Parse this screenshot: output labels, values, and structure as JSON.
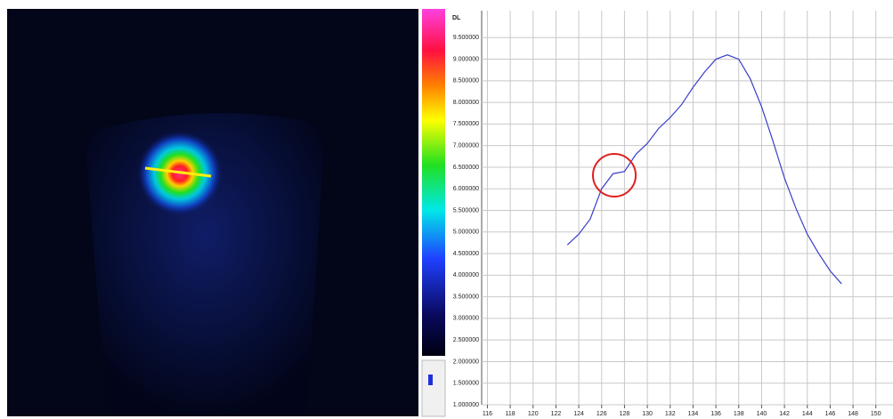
{
  "chart_data": {
    "type": "line",
    "y_label": "DL",
    "x": [
      123,
      124,
      125,
      126,
      127,
      128,
      129,
      130,
      131,
      132,
      133,
      134,
      135,
      136,
      137,
      138,
      139,
      140,
      141,
      142,
      143,
      144,
      145,
      146,
      147
    ],
    "values": [
      4.7,
      4.95,
      5.3,
      6.0,
      6.35,
      6.4,
      6.8,
      7.05,
      7.4,
      7.65,
      7.95,
      8.35,
      8.7,
      9.0,
      9.1,
      9.0,
      8.55,
      7.9,
      7.1,
      6.25,
      5.55,
      4.95,
      4.5,
      4.1,
      3.8
    ],
    "color": "#3a3fc8",
    "xlim": [
      115.5,
      151.5
    ],
    "xticks": [
      116,
      118,
      120,
      122,
      124,
      126,
      128,
      130,
      132,
      134,
      136,
      138,
      140,
      142,
      144,
      146,
      148,
      150
    ],
    "ylim": [
      1,
      10
    ],
    "yticks": [
      {
        "value": 1,
        "label": "1.000000"
      },
      {
        "value": 1.5,
        "label": "1.500000"
      },
      {
        "value": 2,
        "label": "2.000000"
      },
      {
        "value": 2.5,
        "label": "2.500000"
      },
      {
        "value": 3,
        "label": "3.000000"
      },
      {
        "value": 3.5,
        "label": "3.500000"
      },
      {
        "value": 4,
        "label": "4.000000"
      },
      {
        "value": 4.5,
        "label": "4.500000"
      },
      {
        "value": 5,
        "label": "5.000000"
      },
      {
        "value": 5.5,
        "label": "5.500000"
      },
      {
        "value": 6,
        "label": "6.000000"
      },
      {
        "value": 6.5,
        "label": "6.500000"
      },
      {
        "value": 7,
        "label": "7.000000"
      },
      {
        "value": 7.5,
        "label": "7.500000"
      },
      {
        "value": 8,
        "label": "8.000000"
      },
      {
        "value": 8.5,
        "label": "8.500000"
      },
      {
        "value": 9,
        "label": "9.000000"
      },
      {
        "value": 9.5,
        "label": "9.500000"
      }
    ],
    "grid": true
  }
}
